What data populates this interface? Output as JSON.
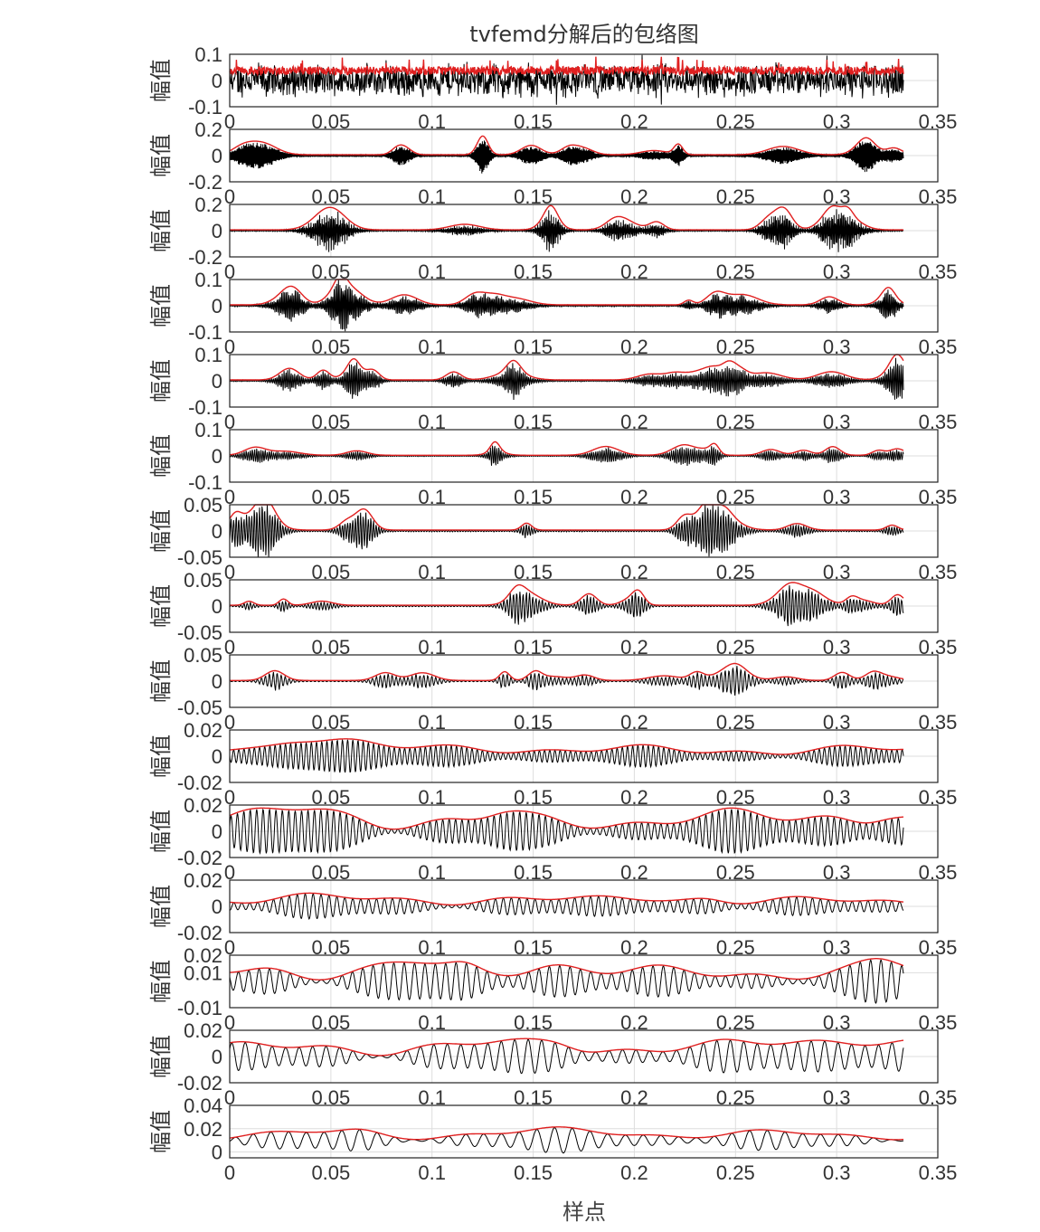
{
  "chart_data": {
    "type": "line",
    "title": "tvfemd分解后的包络图",
    "xlabel": "样点",
    "ylabel": "幅值",
    "xlim": [
      0,
      0.35
    ],
    "x_ticks": [
      0,
      0.05,
      0.1,
      0.15,
      0.2,
      0.25,
      0.3,
      0.35
    ],
    "x_tick_labels": [
      "0",
      "0.05",
      "0.1",
      "0.15",
      "0.2",
      "0.25",
      "0.3",
      "0.35"
    ],
    "signal_end_x": 0.333,
    "grid": true,
    "colors": {
      "signal": "#000000",
      "envelope": "#e02020",
      "grid": "#dddddd",
      "axes": "#222222"
    },
    "series_per_panel": [
      "signal",
      "envelope"
    ],
    "panels": [
      {
        "index": 1,
        "ylim": [
          -0.1,
          0.1
        ],
        "y_ticks": [
          0.1,
          0,
          -0.1
        ],
        "y_tick_labels": [
          "0.1",
          "0",
          "-0.1"
        ],
        "amp": 0.06,
        "cycles": 900,
        "style": "noise"
      },
      {
        "index": 2,
        "ylim": [
          -0.2,
          0.2
        ],
        "y_ticks": [
          0.2,
          0,
          -0.2
        ],
        "y_tick_labels": [
          "0.2",
          "0",
          "-0.2"
        ],
        "amp": 0.07,
        "cycles": 700,
        "style": "bursty"
      },
      {
        "index": 3,
        "ylim": [
          -0.2,
          0.2
        ],
        "y_ticks": [
          0.2,
          0,
          -0.2
        ],
        "y_tick_labels": [
          "0.2",
          "0",
          "-0.2"
        ],
        "amp": 0.07,
        "cycles": 550,
        "style": "bursty"
      },
      {
        "index": 4,
        "ylim": [
          -0.1,
          0.1
        ],
        "y_ticks": [
          0.1,
          0,
          -0.1
        ],
        "y_tick_labels": [
          "0.1",
          "0",
          "-0.1"
        ],
        "amp": 0.04,
        "cycles": 450,
        "style": "bursty"
      },
      {
        "index": 5,
        "ylim": [
          -0.1,
          0.1
        ],
        "y_ticks": [
          0.1,
          0,
          -0.1
        ],
        "y_tick_labels": [
          "0.1",
          "0",
          "-0.1"
        ],
        "amp": 0.04,
        "cycles": 380,
        "style": "bursty"
      },
      {
        "index": 6,
        "ylim": [
          -0.1,
          0.1
        ],
        "y_ticks": [
          0.1,
          0,
          -0.1
        ],
        "y_tick_labels": [
          "0.1",
          "0",
          "-0.1"
        ],
        "amp": 0.03,
        "cycles": 320,
        "style": "bursty"
      },
      {
        "index": 7,
        "ylim": [
          -0.05,
          0.05
        ],
        "y_ticks": [
          0.05,
          0,
          -0.05
        ],
        "y_tick_labels": [
          "0.05",
          "0",
          "-0.05"
        ],
        "amp": 0.022,
        "cycles": 260,
        "style": "bursty"
      },
      {
        "index": 8,
        "ylim": [
          -0.05,
          0.05
        ],
        "y_ticks": [
          0.05,
          0,
          -0.05
        ],
        "y_tick_labels": [
          "0.05",
          "0",
          "-0.05"
        ],
        "amp": 0.018,
        "cycles": 210,
        "style": "bursty"
      },
      {
        "index": 9,
        "ylim": [
          -0.05,
          0.05
        ],
        "y_ticks": [
          0.05,
          0,
          -0.05
        ],
        "y_tick_labels": [
          "0.05",
          "0",
          "-0.05"
        ],
        "amp": 0.015,
        "cycles": 170,
        "style": "bursty"
      },
      {
        "index": 10,
        "ylim": [
          -0.02,
          0.02
        ],
        "y_ticks": [
          0.02,
          0,
          -0.02
        ],
        "y_tick_labels": [
          "0.02",
          "0",
          "-0.02"
        ],
        "amp": 0.008,
        "cycles": 130,
        "style": "oscill"
      },
      {
        "index": 11,
        "ylim": [
          -0.02,
          0.02
        ],
        "y_ticks": [
          0.02,
          0,
          -0.02
        ],
        "y_tick_labels": [
          "0.02",
          "0",
          "-0.02"
        ],
        "amp": 0.013,
        "cycles": 105,
        "style": "oscill"
      },
      {
        "index": 12,
        "ylim": [
          -0.02,
          0.02
        ],
        "y_ticks": [
          0.02,
          0,
          -0.02
        ],
        "y_tick_labels": [
          "0.02",
          "0",
          "-0.02"
        ],
        "amp": 0.007,
        "cycles": 85,
        "style": "oscill"
      },
      {
        "index": 13,
        "ylim": [
          -0.01,
          0.02
        ],
        "y_ticks": [
          0.02,
          0.01,
          -0.01
        ],
        "y_tick_labels": [
          "0.02",
          "0.01",
          "-0.01"
        ],
        "amp": 0.0085,
        "cycles": 65,
        "style": "oscill"
      },
      {
        "index": 14,
        "ylim": [
          -0.02,
          0.02
        ],
        "y_ticks": [
          0.02,
          0,
          -0.02
        ],
        "y_tick_labels": [
          "0.02",
          "0",
          "-0.02"
        ],
        "amp": 0.011,
        "cycles": 50,
        "style": "oscill"
      },
      {
        "index": 15,
        "ylim": [
          -0.005,
          0.04
        ],
        "y_ticks": [
          0.04,
          0.02,
          0
        ],
        "y_tick_labels": [
          "0.04",
          "0.02",
          "0"
        ],
        "amp": 0.007,
        "cycles": 38,
        "style": "oscill"
      }
    ]
  }
}
